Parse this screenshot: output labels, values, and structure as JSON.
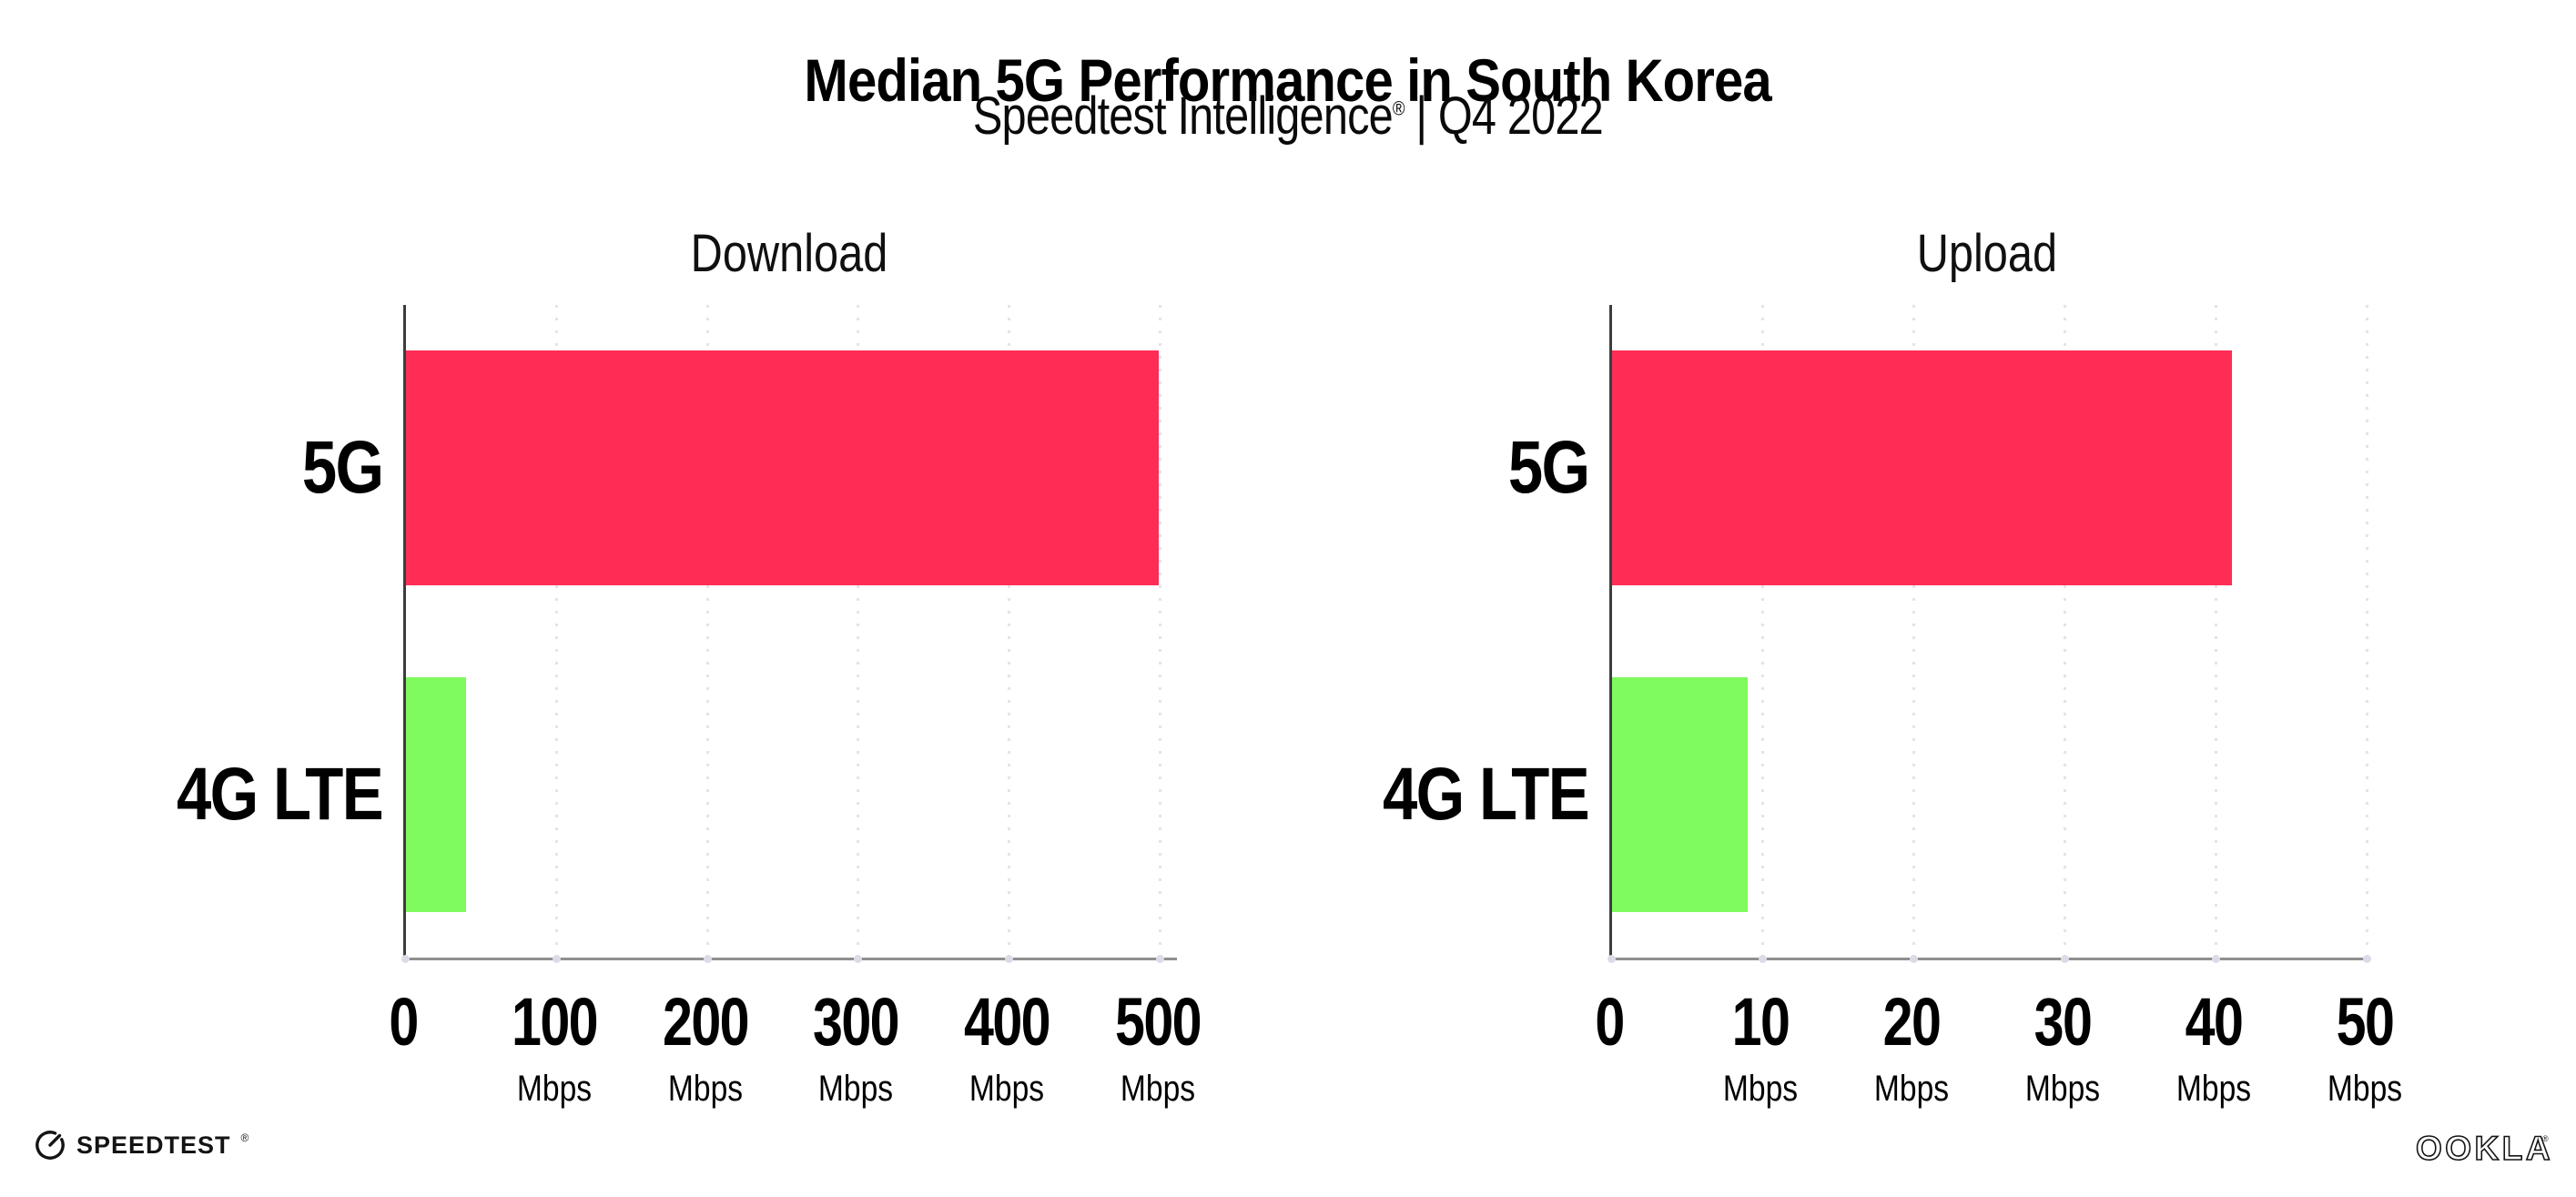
{
  "header": {
    "title": "Median 5G Performance in South Korea",
    "subtitle_brand": "Speedtest Intelligence",
    "subtitle_mark": "®",
    "subtitle_rest": " | Q4 2022"
  },
  "colors": {
    "bar_5g": "#FF2D55",
    "bar_4g_lte": "#7FFB5F",
    "gridline": "#E3E3EE",
    "tick_dot": "#DCDCE8",
    "y_axis": "#3D3D3D",
    "x_axis": "#8F8F8F",
    "text": "#000000"
  },
  "chart_data": [
    {
      "type": "bar",
      "orientation": "horizontal",
      "title": "Download",
      "categories": [
        "5G",
        "4G LTE"
      ],
      "values": [
        499,
        40
      ],
      "value_unit": "Mbps",
      "xlim": [
        0,
        511
      ],
      "ticks": [
        {
          "value": 0,
          "label": "0",
          "unit": ""
        },
        {
          "value": 100,
          "label": "100",
          "unit": "Mbps"
        },
        {
          "value": 200,
          "label": "200",
          "unit": "Mbps"
        },
        {
          "value": 300,
          "label": "300",
          "unit": "Mbps"
        },
        {
          "value": 400,
          "label": "400",
          "unit": "Mbps"
        },
        {
          "value": 500,
          "label": "500",
          "unit": "Mbps"
        }
      ],
      "bar_colors": [
        "#FF2D55",
        "#7FFB5F"
      ],
      "grid": {
        "show": true,
        "style": "dotted",
        "lines": "vertical"
      },
      "legend": "none"
    },
    {
      "type": "bar",
      "orientation": "horizontal",
      "title": "Upload",
      "categories": [
        "5G",
        "4G LTE"
      ],
      "values": [
        41,
        9
      ],
      "value_unit": "Mbps",
      "xlim": [
        0,
        50
      ],
      "ticks": [
        {
          "value": 0,
          "label": "0",
          "unit": ""
        },
        {
          "value": 10,
          "label": "10",
          "unit": "Mbps"
        },
        {
          "value": 20,
          "label": "20",
          "unit": "Mbps"
        },
        {
          "value": 30,
          "label": "30",
          "unit": "Mbps"
        },
        {
          "value": 40,
          "label": "40",
          "unit": "Mbps"
        },
        {
          "value": 50,
          "label": "50",
          "unit": "Mbps"
        }
      ],
      "bar_colors": [
        "#FF2D55",
        "#7FFB5F"
      ],
      "grid": {
        "show": true,
        "style": "dotted",
        "lines": "vertical"
      },
      "legend": "none"
    }
  ],
  "footer": {
    "speedtest_brand": "SPEEDTEST",
    "speedtest_mark": "®",
    "ookla_brand": "OOKLA",
    "ookla_mark": "®"
  }
}
